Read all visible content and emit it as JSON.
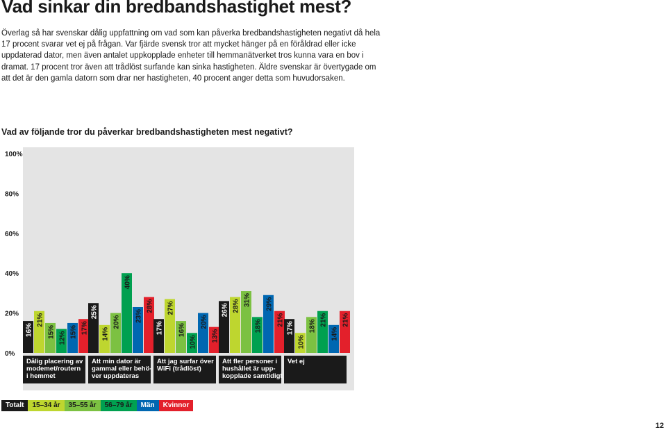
{
  "title": "Vad sinkar din bredbandshastighet mest?",
  "intro": "Överlag så har svenskar dålig uppfattning om vad som kan påverka bredbandshastigheten negativt då hela 17 procent svarar vet ej på frågan. Var fjärde svensk tror att mycket hänger på en föråldrad eller icke uppdaterad dator, men även antalet uppkopplade enheter till hemmanätverket tros kunna vara en bov i dramat. 17 procent tror även att trådlöst surfande kan sinka hastigheten. Äldre svenskar är övertygade om att det är den gamla datorn som drar ner hastigheten, 40 procent anger detta som huvudorsaken.",
  "question": "Vad av följande tror du påverkar bredbandshastigheten mest negativt?",
  "page_number": "12",
  "chart_data": {
    "type": "bar",
    "ylim": [
      0,
      100
    ],
    "yticks": [
      "100%",
      "80%",
      "60%",
      "40%",
      "20%",
      "0%"
    ],
    "value_suffix": "%",
    "categories": [
      [
        "Dålig placering av",
        "modemet/routern",
        "i hemmet"
      ],
      [
        "Att min dator är",
        "gammal eller behö-",
        "ver uppdateras"
      ],
      [
        "Att jag surfar över",
        "WiFi (trådlöst)"
      ],
      [
        "Att fler personer i",
        "hushållet är upp-",
        "kopplade samtidigt"
      ],
      [
        "Vet ej"
      ]
    ],
    "series": [
      {
        "name": "Totalt",
        "color": "#1a1a1a",
        "label_color": "#ffffff",
        "values": [
          16,
          25,
          17,
          26,
          17
        ]
      },
      {
        "name": "15–34 år",
        "color": "#bed62f",
        "label_color": "#1a1a1a",
        "values": [
          21,
          14,
          27,
          28,
          10
        ]
      },
      {
        "name": "35–55 år",
        "color": "#7cc142",
        "label_color": "#1a1a1a",
        "values": [
          15,
          20,
          16,
          31,
          18
        ]
      },
      {
        "name": "56–79 år",
        "color": "#00a050",
        "label_color": "#1a1a1a",
        "values": [
          12,
          40,
          10,
          18,
          21
        ]
      },
      {
        "name": "Män",
        "color": "#0067b1",
        "label_color": "#1a1a1a",
        "values": [
          15,
          23,
          20,
          29,
          14
        ]
      },
      {
        "name": "Kvinnor",
        "color": "#e3202b",
        "label_color": "#1a1a1a",
        "values": [
          17,
          28,
          13,
          21,
          21
        ]
      }
    ],
    "grid": false,
    "legend_position": "bottom-left"
  }
}
